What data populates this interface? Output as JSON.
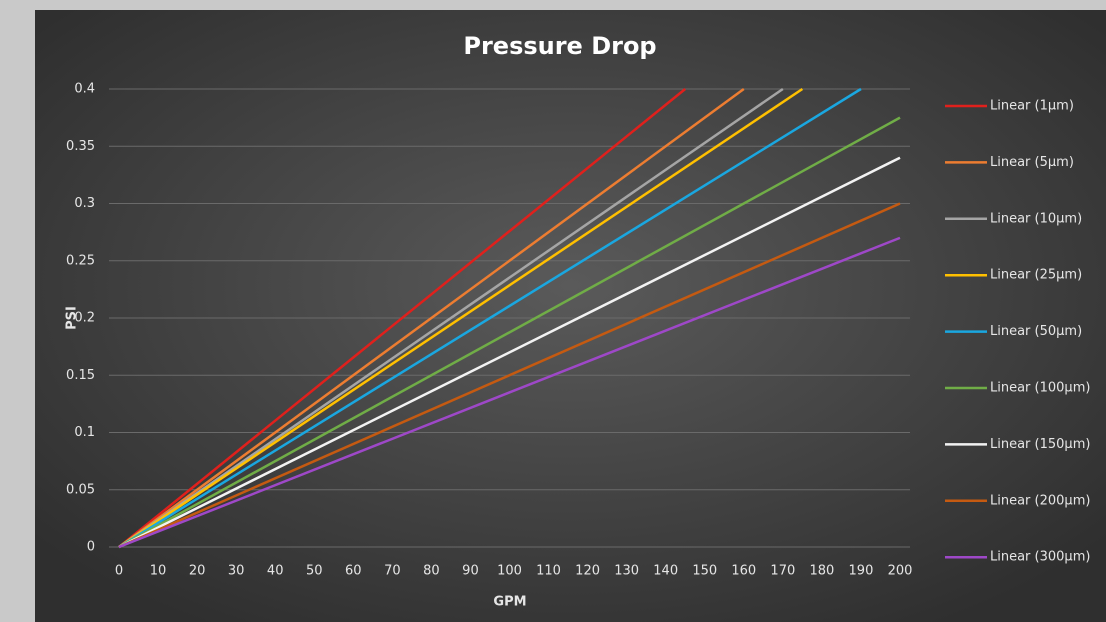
{
  "chart_data": {
    "type": "line",
    "title": "Pressure Drop",
    "x_label": "GPM",
    "y_label": "PSI",
    "xlim": [
      0,
      200
    ],
    "xticks": [
      0,
      10,
      20,
      30,
      40,
      50,
      60,
      70,
      80,
      90,
      100,
      110,
      120,
      130,
      140,
      150,
      160,
      170,
      180,
      190,
      200
    ],
    "ylim": [
      0,
      0.4
    ],
    "yticks": [
      0,
      0.05,
      0.1,
      0.15,
      0.2,
      0.25,
      0.3,
      0.35,
      0.4
    ],
    "grid": true,
    "legend": "right",
    "series": [
      {
        "name": "Linear (1µm)",
        "color": "#e0201c",
        "x": [
          0,
          145
        ],
        "values": [
          0,
          0.4
        ]
      },
      {
        "name": "Linear (5µm)",
        "color": "#ed7d31",
        "x": [
          0,
          160
        ],
        "values": [
          0,
          0.4
        ]
      },
      {
        "name": "Linear (10µm)",
        "color": "#a5a5a5",
        "x": [
          0,
          170
        ],
        "values": [
          0,
          0.4
        ]
      },
      {
        "name": "Linear (25µm)",
        "color": "#ffc000",
        "x": [
          0,
          175
        ],
        "values": [
          0,
          0.4
        ]
      },
      {
        "name": "Linear (50µm)",
        "color": "#1aa7e0",
        "x": [
          0,
          190
        ],
        "values": [
          0,
          0.4
        ]
      },
      {
        "name": "Linear (100µm)",
        "color": "#70ad47",
        "x": [
          0,
          200
        ],
        "values": [
          0,
          0.375
        ]
      },
      {
        "name": "Linear (150µm)",
        "color": "#f2f2f2",
        "x": [
          0,
          200
        ],
        "values": [
          0,
          0.34
        ]
      },
      {
        "name": "Linear (200µm)",
        "color": "#c55a11",
        "x": [
          0,
          200
        ],
        "values": [
          0,
          0.3
        ]
      },
      {
        "name": "Linear (300µm)",
        "color": "#9e48c8",
        "x": [
          0,
          200
        ],
        "values": [
          0,
          0.27
        ]
      }
    ]
  }
}
